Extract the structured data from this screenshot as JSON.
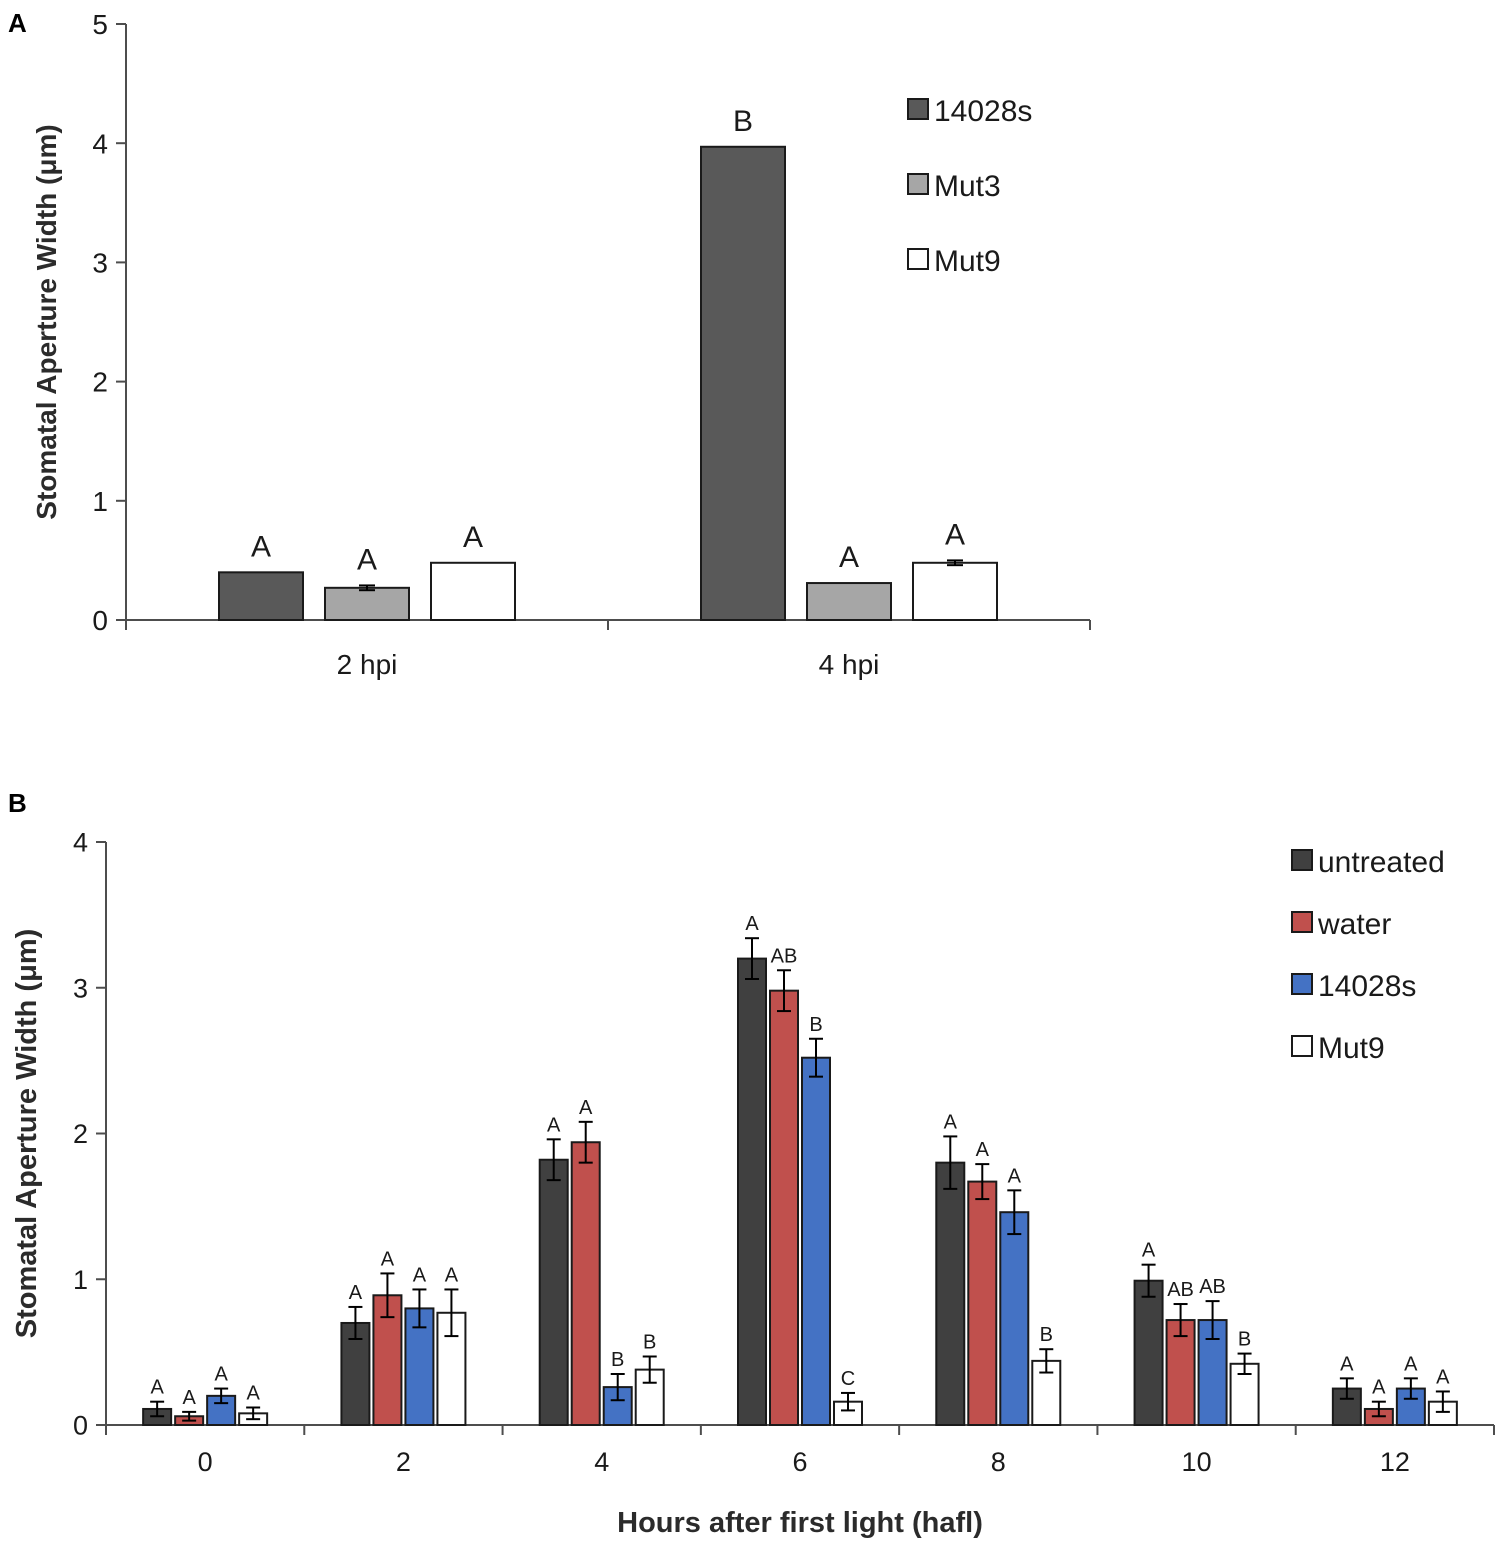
{
  "chart_data": [
    {
      "type": "bar",
      "panel": "A",
      "title": "",
      "xlabel": "",
      "ylabel": "Stomatal Aperture Width (μm)",
      "ylim": [
        0,
        5
      ],
      "yticks": [
        0,
        1,
        2,
        3,
        4,
        5
      ],
      "grid": false,
      "legend_position": "top-right",
      "categories": [
        "2 hpi",
        "4 hpi"
      ],
      "series": [
        {
          "name": "14028s",
          "color": "#595959",
          "values": [
            0.4,
            3.97
          ],
          "errors": [
            0,
            0
          ],
          "letters": [
            "A",
            "B"
          ]
        },
        {
          "name": "Mut3",
          "color": "#a6a6a6",
          "values": [
            0.27,
            0.31
          ],
          "errors": [
            0.02,
            0
          ],
          "letters": [
            "A",
            "A"
          ]
        },
        {
          "name": "Mut9",
          "color": "#ffffff",
          "values": [
            0.48,
            0.48
          ],
          "errors": [
            0,
            0.02
          ],
          "letters": [
            "A",
            "A"
          ]
        }
      ]
    },
    {
      "type": "bar",
      "panel": "B",
      "title": "",
      "xlabel": "Hours after first light (hafl)",
      "ylabel": "Stomatal Aperture Width (μm)",
      "ylim": [
        0,
        4
      ],
      "yticks": [
        0,
        1,
        2,
        3,
        4
      ],
      "grid": false,
      "legend_position": "top-right",
      "categories": [
        "0",
        "2",
        "4",
        "6",
        "8",
        "10",
        "12"
      ],
      "series": [
        {
          "name": "untreated",
          "color": "#404040",
          "values": [
            0.11,
            0.7,
            1.82,
            3.2,
            1.8,
            0.99,
            0.25
          ],
          "errors": [
            0.05,
            0.11,
            0.14,
            0.14,
            0.18,
            0.11,
            0.07
          ],
          "letters": [
            "A",
            "A",
            "A",
            "A",
            "A",
            "A",
            "A"
          ]
        },
        {
          "name": "water",
          "color": "#c0504d",
          "values": [
            0.06,
            0.89,
            1.94,
            2.98,
            1.67,
            0.72,
            0.11
          ],
          "errors": [
            0.03,
            0.15,
            0.14,
            0.14,
            0.12,
            0.11,
            0.05
          ],
          "letters": [
            "A",
            "A",
            "A",
            "AB",
            "A",
            "AB",
            "A"
          ]
        },
        {
          "name": "14028s",
          "color": "#4472c4",
          "values": [
            0.2,
            0.8,
            0.26,
            2.52,
            1.46,
            0.72,
            0.25
          ],
          "errors": [
            0.05,
            0.13,
            0.09,
            0.13,
            0.15,
            0.13,
            0.07
          ],
          "letters": [
            "A",
            "A",
            "B",
            "B",
            "A",
            "AB",
            "A"
          ]
        },
        {
          "name": "Mut9",
          "color": "#ffffff",
          "values": [
            0.08,
            0.77,
            0.38,
            0.16,
            0.44,
            0.42,
            0.16
          ],
          "errors": [
            0.04,
            0.16,
            0.09,
            0.06,
            0.08,
            0.07,
            0.07
          ],
          "letters": [
            "A",
            "A",
            "B",
            "C",
            "B",
            "B",
            "A"
          ]
        }
      ]
    }
  ],
  "panels": {
    "a_label": "A",
    "b_label": "B"
  }
}
